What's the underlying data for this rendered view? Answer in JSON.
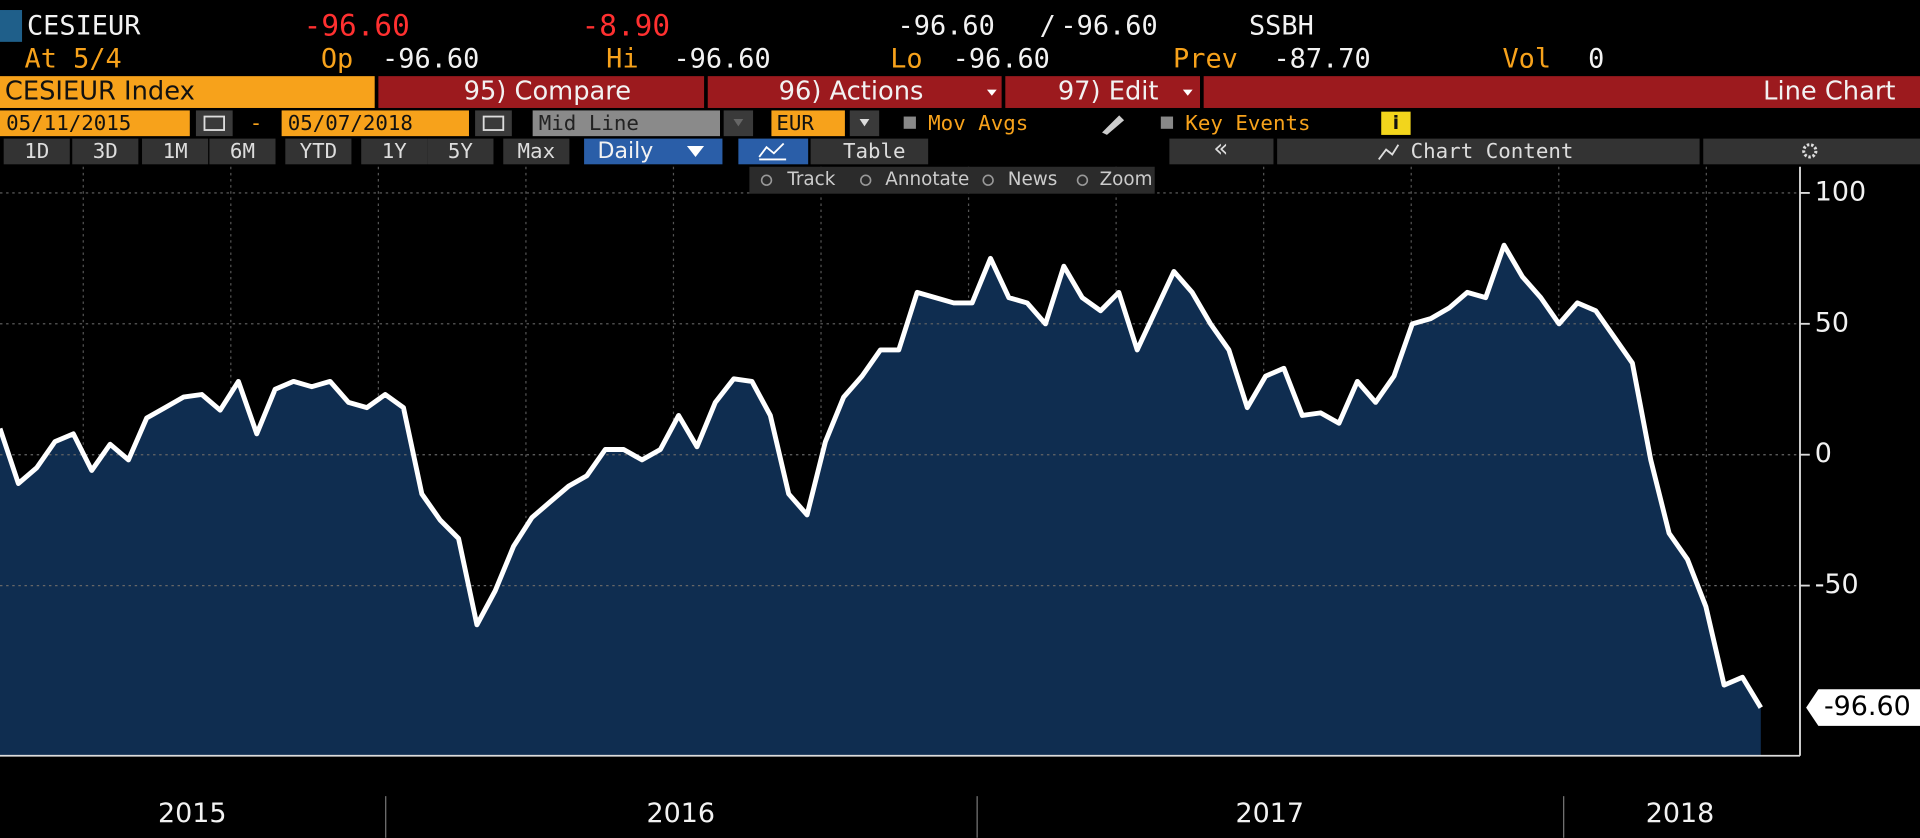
{
  "header": {
    "ticker": "CESIEUR",
    "last": "-96.60",
    "change": "-8.90",
    "bid": "-96.60",
    "separator": "/",
    "ask": "-96.60",
    "source": "SSBH",
    "at": "At 5/4",
    "open_label": "Op",
    "open": "-96.60",
    "high_label": "Hi",
    "high": "-96.60",
    "low_label": "Lo",
    "low": "-96.60",
    "prev_label": "Prev",
    "prev": "-87.70",
    "vol_label": "Vol",
    "vol": "0"
  },
  "toolbar": {
    "security": "CESIEUR Index",
    "compare": "95) Compare",
    "actions": "96) Actions",
    "edit": "97) Edit",
    "view": "Line Chart"
  },
  "settings": {
    "start_date": "05/11/2015",
    "dash": "-",
    "end_date": "05/07/2018",
    "line_style": "Mid Line",
    "currency": "EUR",
    "mov_avgs": "Mov Avgs",
    "key_events": "Key Events",
    "info": "i"
  },
  "periods": [
    "1D",
    "3D",
    "1M",
    "6M",
    "YTD",
    "1Y",
    "5Y",
    "Max"
  ],
  "tabs": {
    "frequency": "Daily",
    "table": "Table",
    "collapse": "«",
    "chart_content": "Chart Content"
  },
  "tools": [
    "Track",
    "Annotate",
    "News",
    "Zoom"
  ],
  "chart_data": {
    "type": "line",
    "x_labels": [
      "2015",
      "2016",
      "2017",
      "2018"
    ],
    "series": [
      {
        "name": "CESIEUR",
        "color": "#ffffff",
        "fill": "#0f2d50",
        "values": [
          10,
          -11,
          -5,
          5,
          8,
          -6,
          4,
          -2,
          14,
          18,
          22,
          23,
          17,
          28,
          8,
          25,
          28,
          26,
          28,
          20,
          18,
          23,
          18,
          -15,
          -25,
          -32,
          -65,
          -52,
          -35,
          -24,
          -18,
          -12,
          -8,
          2,
          2,
          -2,
          2,
          15,
          3,
          20,
          29,
          28,
          15,
          -15,
          -23,
          5,
          22,
          30,
          40,
          40,
          62,
          60,
          58,
          58,
          75,
          60,
          58,
          50,
          72,
          60,
          55,
          62,
          40,
          55,
          70,
          62,
          50,
          40,
          18,
          30,
          33,
          15,
          16,
          12,
          28,
          20,
          30,
          50,
          52,
          56,
          62,
          60,
          80,
          68,
          60,
          50,
          58,
          55,
          45,
          35,
          -2,
          -30,
          -40,
          -58,
          -88,
          -85,
          -96.6
        ]
      }
    ],
    "last_label": "-96.60",
    "ylim": [
      -115,
      110
    ],
    "yticks": [
      -50,
      0,
      50,
      100
    ],
    "grid": true
  }
}
